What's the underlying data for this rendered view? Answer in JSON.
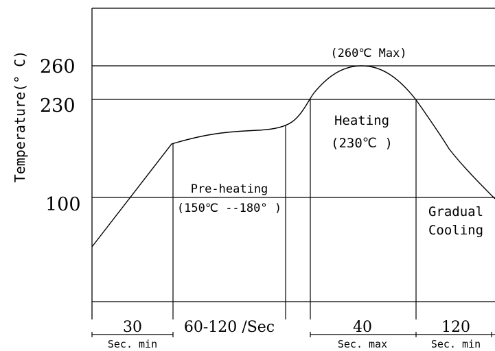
{
  "chart_data": {
    "type": "line",
    "title": "",
    "ylabel": "Temperature(° C)",
    "xlabel": "",
    "y_ticks": [
      "260",
      "230",
      "100"
    ],
    "y_reference_lines": [
      260,
      230,
      100
    ],
    "peak_label": "(260℃  Max)",
    "zones": [
      {
        "name": "Pre-heating",
        "range": "(150℃ --180° )",
        "duration": "60-120 /Sec",
        "unit": ""
      },
      {
        "name": "Heating",
        "range": "(230℃ )",
        "duration": "40",
        "unit": "Sec. max"
      },
      {
        "name": "Gradual Cooling",
        "name_lines": [
          "Gradual",
          "Cooling"
        ],
        "duration": "120",
        "unit": "Sec. min"
      }
    ],
    "initial_duration": {
      "duration": "30",
      "unit": "Sec. min"
    },
    "line_color": "#000000"
  }
}
